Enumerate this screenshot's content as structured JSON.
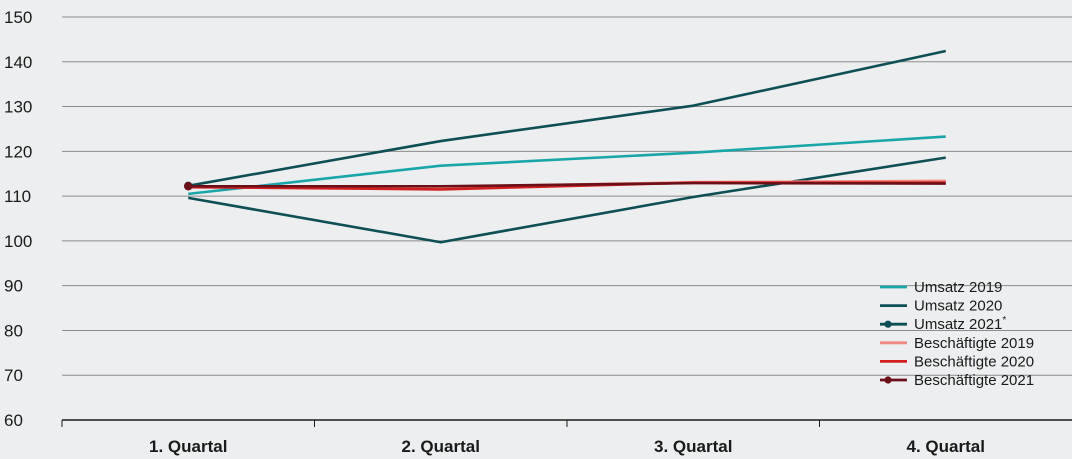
{
  "chart_data": {
    "type": "line",
    "categories": [
      "1. Quartal",
      "2. Quartal",
      "3. Quartal",
      "4. Quartal"
    ],
    "ylim": [
      60,
      150
    ],
    "yticks": [
      60,
      70,
      80,
      90,
      100,
      110,
      120,
      130,
      140,
      150
    ],
    "grid": true,
    "legend": "bottom-right",
    "series": [
      {
        "name": "Umsatz 2019",
        "color": "#1aa5a8",
        "marker": false,
        "values": [
          110.5,
          116.8,
          119.7,
          123.3
        ]
      },
      {
        "name": "Umsatz 2020",
        "color": "#0e4f55",
        "marker": false,
        "values": [
          109.6,
          99.7,
          109.8,
          118.6
        ]
      },
      {
        "name": "Umsatz 2021",
        "name_sup": "*",
        "color": "#0e4f55",
        "marker": true,
        "values": [
          112.3,
          122.3,
          130.2,
          142.4
        ]
      },
      {
        "name": "Beschäftigte 2019",
        "color": "#f08a80",
        "marker": false,
        "values": [
          112.0,
          112.0,
          113.1,
          113.4
        ]
      },
      {
        "name": "Beschäftigte 2020",
        "color": "#d11f1f",
        "marker": false,
        "values": [
          112.0,
          111.5,
          113.0,
          113.0
        ]
      },
      {
        "name": "Beschäftigte 2021",
        "color": "#6b0f18",
        "marker": true,
        "values": [
          112.2,
          112.2,
          112.9,
          112.8
        ]
      }
    ]
  }
}
